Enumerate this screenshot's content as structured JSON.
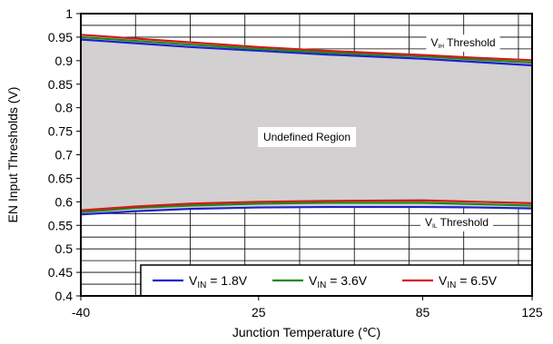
{
  "chart_data": {
    "type": "line",
    "title": "",
    "xlabel": "Junction Temperature (℃)",
    "ylabel": "EN Input Thresholds (V)",
    "xlim": [
      -40,
      125
    ],
    "ylim": [
      0.4,
      1.0
    ],
    "x_ticks": [
      -40,
      25,
      85,
      125
    ],
    "x_tick_labels": [
      "-40",
      "25",
      "85",
      "125"
    ],
    "y_ticks": [
      0.4,
      0.45,
      0.5,
      0.55,
      0.6,
      0.65,
      0.7,
      0.75,
      0.8,
      0.85,
      0.9,
      0.95,
      1.0
    ],
    "y_tick_labels": [
      "0.4",
      "0.45",
      "0.5",
      "0.55",
      "0.6",
      "0.65",
      "0.7",
      "0.75",
      "0.8",
      "0.85",
      "0.9",
      "0.95",
      "1"
    ],
    "grid": true,
    "legend": "bottom-right",
    "x": [
      -40,
      -20,
      0,
      25,
      50,
      85,
      105,
      125
    ],
    "series": [
      {
        "name": "VIN = 1.8V",
        "color": "#1f1fcf",
        "vih": [
          0.945,
          0.937,
          0.929,
          0.921,
          0.913,
          0.904,
          0.897,
          0.89
        ],
        "vil": [
          0.573,
          0.58,
          0.585,
          0.588,
          0.589,
          0.589,
          0.588,
          0.586
        ]
      },
      {
        "name": "VIN = 3.6V",
        "color": "#1a8a1a",
        "vih": [
          0.95,
          0.942,
          0.934,
          0.925,
          0.917,
          0.909,
          0.902,
          0.896
        ],
        "vil": [
          0.578,
          0.587,
          0.592,
          0.596,
          0.598,
          0.598,
          0.595,
          0.592
        ]
      },
      {
        "name": "VIN = 6.5V",
        "color": "#d41a1a",
        "vih": [
          0.955,
          0.947,
          0.939,
          0.929,
          0.921,
          0.912,
          0.906,
          0.901
        ],
        "vil": [
          0.582,
          0.59,
          0.596,
          0.6,
          0.602,
          0.603,
          0.6,
          0.597
        ]
      }
    ],
    "legend_entries": [
      {
        "v": "V",
        "sub": "IN",
        "rest": " = 1.8V",
        "color": "#1f1fcf"
      },
      {
        "v": "V",
        "sub": "IN",
        "rest": " = 3.6V",
        "color": "#1a8a1a"
      },
      {
        "v": "V",
        "sub": "IN",
        "rest": " = 6.5V",
        "color": "#d41a1a"
      }
    ],
    "annotations": {
      "vih": {
        "v": "V",
        "sub": "IH",
        "rest": " Threshold"
      },
      "vil": {
        "v": "V",
        "sub": "IL",
        "rest": " Threshold"
      },
      "region": "Undefined Region"
    },
    "region_fill": "#d2d0d0"
  }
}
